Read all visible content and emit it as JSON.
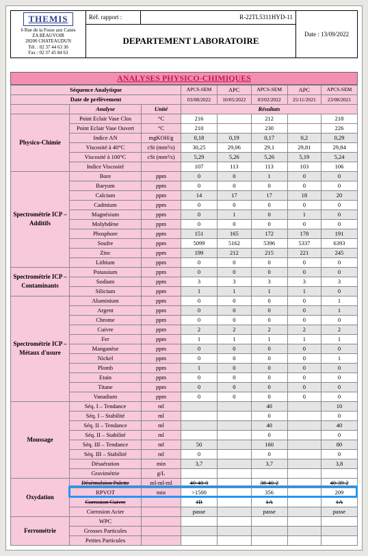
{
  "header": {
    "logo": "THEMIS",
    "addr1": "6 Rue de la Fosse aux Canes",
    "addr2": "ZA BEAUVOIR",
    "addr3": "28200 CHATEAUDUN",
    "tel": "Tél. : 02 37 44 63 30",
    "fax": "Fax : 02 37 45 84 63",
    "ref_label": "Réf. rapport :",
    "ref_num": "R-22TL5311HYD-11",
    "dept": "DEPARTEMENT LABORATOIRE",
    "date_label": "Date : 13/09/2022"
  },
  "title": "ANALYSES PHYSICO-CHIMIQUES",
  "seq_label": "Séquence Analytique",
  "date_label": "Date de prélèvement",
  "cols": [
    "APCS-SEM",
    "APC",
    "APCS-SEM",
    "APC",
    "APCS-SEM"
  ],
  "dates": [
    "03/08/2022",
    "10/05/2022",
    "03/02/2022",
    "25/11/2021",
    "23/08/2021"
  ],
  "analyse_h": "Analyse",
  "unite_h": "Unité",
  "result_h": "Résultats",
  "sections": [
    {
      "name": "Physico-Chimie",
      "rows": [
        {
          "a": "Point Eclair Vase Clos",
          "u": "°C",
          "v": [
            "216",
            "",
            "212",
            "",
            "218"
          ]
        },
        {
          "a": "Point Eclair Vase Ouvert",
          "u": "°C",
          "v": [
            "210",
            "",
            "230",
            "",
            "226"
          ]
        },
        {
          "a": "Indice AN",
          "u": "mgKOH/g",
          "v": [
            "0,18",
            "0,19",
            "0,17",
            "0,2",
            "0,29"
          ],
          "g": true
        },
        {
          "a": "Viscosité à 40°C",
          "u": "cSt (mm²/s)",
          "v": [
            "30,25",
            "29,06",
            "29,1",
            "29,81",
            "29,84"
          ]
        },
        {
          "a": "Viscosité à 100°C",
          "u": "cSt (mm²/s)",
          "v": [
            "5,29",
            "5,26",
            "5,26",
            "5,19",
            "5,24"
          ],
          "g": true
        },
        {
          "a": "Indice Viscosité",
          "u": "",
          "v": [
            "107",
            "113",
            "113",
            "103",
            "106"
          ]
        }
      ]
    },
    {
      "name": "Spectrométrie ICP – Additifs",
      "rows": [
        {
          "a": "Bore",
          "u": "ppm",
          "v": [
            "0",
            "0",
            "1",
            "0",
            "0"
          ],
          "g": true
        },
        {
          "a": "Baryum",
          "u": "ppm",
          "v": [
            "0",
            "0",
            "0",
            "0",
            "0"
          ]
        },
        {
          "a": "Calcium",
          "u": "ppm",
          "v": [
            "14",
            "17",
            "17",
            "18",
            "20"
          ],
          "g": true
        },
        {
          "a": "Cadmium",
          "u": "ppm",
          "v": [
            "0",
            "0",
            "0",
            "0",
            "0"
          ]
        },
        {
          "a": "Magnésium",
          "u": "ppm",
          "v": [
            "0",
            "1",
            "0",
            "1",
            "0"
          ],
          "g": true
        },
        {
          "a": "Molybdène",
          "u": "ppm",
          "v": [
            "0",
            "0",
            "0",
            "0",
            "0"
          ]
        },
        {
          "a": "Phosphore",
          "u": "ppm",
          "v": [
            "151",
            "165",
            "172",
            "178",
            "191"
          ],
          "g": true
        },
        {
          "a": "Soufre",
          "u": "ppm",
          "v": [
            "5099",
            "5162",
            "5396",
            "5337",
            "6393"
          ]
        },
        {
          "a": "Zinc",
          "u": "ppm",
          "v": [
            "199",
            "212",
            "215",
            "221",
            "245"
          ],
          "g": true
        },
        {
          "a": "Lithium",
          "u": "ppm",
          "v": [
            "0",
            "0",
            "0",
            "0",
            "0"
          ]
        }
      ]
    },
    {
      "name": "Spectrométrie ICP – Contaminants",
      "rows": [
        {
          "a": "Potassium",
          "u": "ppm",
          "v": [
            "0",
            "0",
            "0",
            "0",
            "0"
          ],
          "g": true
        },
        {
          "a": "Sodium",
          "u": "ppm",
          "v": [
            "3",
            "3",
            "3",
            "3",
            "3"
          ]
        },
        {
          "a": "Silicium",
          "u": "ppm",
          "v": [
            "1",
            "1",
            "1",
            "1",
            "0"
          ],
          "g": true
        }
      ]
    },
    {
      "name": "Spectrométrie ICP – Métaux d'usure",
      "rows": [
        {
          "a": "Aluminium",
          "u": "ppm",
          "v": [
            "0",
            "0",
            "0",
            "0",
            "1"
          ]
        },
        {
          "a": "Argent",
          "u": "ppm",
          "v": [
            "0",
            "0",
            "0",
            "0",
            "1"
          ],
          "g": true
        },
        {
          "a": "Chrome",
          "u": "ppm",
          "v": [
            "0",
            "0",
            "0",
            "0",
            "0"
          ]
        },
        {
          "a": "Cuivre",
          "u": "ppm",
          "v": [
            "2",
            "2",
            "2",
            "2",
            "2"
          ],
          "g": true
        },
        {
          "a": "Fer",
          "u": "ppm",
          "v": [
            "1",
            "1",
            "1",
            "1",
            "1"
          ]
        },
        {
          "a": "Manganèse",
          "u": "ppm",
          "v": [
            "0",
            "0",
            "0",
            "0",
            "0"
          ],
          "g": true
        },
        {
          "a": "Nickel",
          "u": "ppm",
          "v": [
            "0",
            "0",
            "0",
            "0",
            "1"
          ]
        },
        {
          "a": "Plomb",
          "u": "ppm",
          "v": [
            "1",
            "0",
            "0",
            "0",
            "0"
          ],
          "g": true
        },
        {
          "a": "Etain",
          "u": "ppm",
          "v": [
            "0",
            "0",
            "0",
            "0",
            "0"
          ]
        },
        {
          "a": "Titane",
          "u": "ppm",
          "v": [
            "0",
            "0",
            "0",
            "0",
            "0"
          ],
          "g": true
        },
        {
          "a": "Vanadium",
          "u": "ppm",
          "v": [
            "0",
            "0",
            "0",
            "0",
            "0"
          ]
        }
      ]
    },
    {
      "name": "Moussage",
      "rows": [
        {
          "a": "Séq. I – Tendance",
          "u": "ml",
          "v": [
            "",
            "",
            "40",
            "",
            "10"
          ],
          "g": true
        },
        {
          "a": "Séq. I – Stabilité",
          "u": "ml",
          "v": [
            "",
            "",
            "0",
            "",
            "0"
          ]
        },
        {
          "a": "Séq. II – Tendance",
          "u": "ml",
          "v": [
            "",
            "",
            "40",
            "",
            "40"
          ],
          "g": true
        },
        {
          "a": "Séq. II – Stabilité",
          "u": "ml",
          "v": [
            "",
            "",
            "0",
            "",
            "0"
          ]
        },
        {
          "a": "Séq. III – Tendance",
          "u": "ml",
          "v": [
            "",
            "",
            "50",
            "",
            "160",
            "",
            "80"
          ],
          "g": true,
          "fix": [
            "50",
            "",
            "160",
            "",
            "80"
          ]
        },
        {
          "a": "Séq. III – Tendance",
          "u": "ml",
          "v": [
            "50",
            "",
            "160",
            "",
            "80"
          ],
          "g": true
        },
        {
          "a": "Séq. III – Stabilité",
          "u": "ml",
          "v": [
            "0",
            "",
            "0",
            "",
            "0"
          ]
        },
        {
          "a": "Désaération",
          "u": "min",
          "v": [
            "3,7",
            "",
            "3,7",
            "",
            "3,8"
          ],
          "g": true
        },
        {
          "a": "Gravimétrie",
          "u": "g/L",
          "v": [
            "",
            "",
            "",
            "",
            ""
          ]
        }
      ],
      "skip": [
        4
      ]
    },
    {
      "name": "Oxydation",
      "rows": [
        {
          "a": "Désémulsion Palette",
          "u": "ml-ml-ml",
          "v": [
            "40-40-0",
            "",
            "38-40-2",
            "",
            "40-39-2"
          ],
          "strike": true
        },
        {
          "a": "RPVOT",
          "u": "min",
          "v": [
            ">1500",
            "",
            "356",
            "",
            "209"
          ],
          "hl": true
        },
        {
          "a": "Corrosion Cuivre",
          "u": "",
          "v": [
            "1B",
            "",
            "1A",
            "",
            "1A"
          ],
          "strike": true
        },
        {
          "a": "Corrosion Acier",
          "u": "",
          "v": [
            "passe",
            "",
            "passe",
            "",
            "passe"
          ],
          "g": true
        }
      ]
    },
    {
      "name": "Ferrométrie",
      "rows": [
        {
          "a": "WPC",
          "u": "",
          "v": [
            "",
            "",
            "",
            "",
            ""
          ]
        },
        {
          "a": "Grosses Particules",
          "u": "",
          "v": [
            "",
            "",
            "",
            "",
            ""
          ],
          "g": true
        },
        {
          "a": "Petites Particules",
          "u": "",
          "v": [
            "",
            "",
            "",
            "",
            ""
          ]
        }
      ]
    }
  ]
}
